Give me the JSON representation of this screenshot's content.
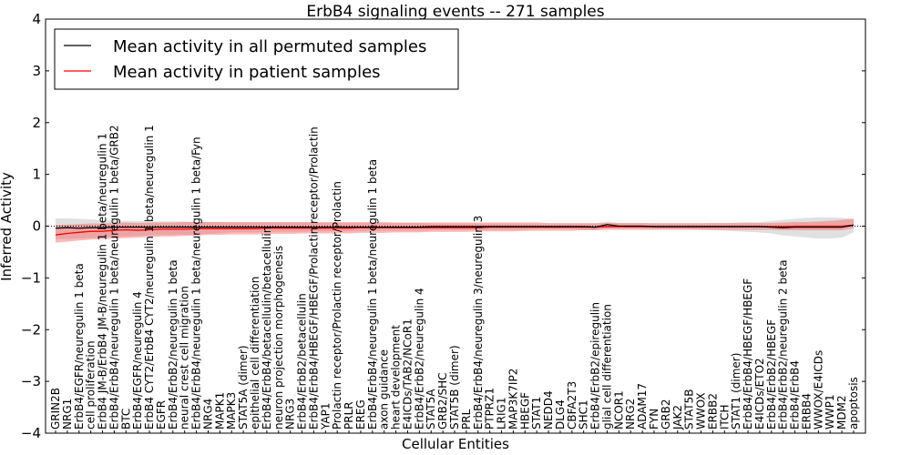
{
  "chart_data": {
    "type": "line",
    "title": "ErbB4 signaling events -- 271 samples",
    "xlabel": "Cellular Entities",
    "ylabel": "Inferred Activity",
    "ylim": [
      -4,
      4
    ],
    "yticks": [
      -4,
      -3,
      -2,
      -1,
      0,
      1,
      2,
      3,
      4
    ],
    "grid": false,
    "legend_position": "top-left",
    "categories": [
      "GRIN2B",
      "NRG1",
      "ErbB4/EGFR/neuregulin 1 beta",
      "cell proliferation",
      "ErbB4 JM-B/ErbB4 JM-B/neuregulin 1 beta/neuregulin 1",
      "ErbB4/ErbB4/neuregulin 1 beta/neuregulin 1 beta/GRB2",
      "BTC",
      "ErbB4/EGFR/neuregulin 4",
      "ErbB4 CYT2/ErbB4 CYT2/neuregulin 1 beta/neuregulin 1",
      "EGFR",
      "ErbB4/ErbB2/neuregulin 1 beta",
      "neural crest cell migration",
      "ErbB4/ErbB4/neuregulin 1 beta/neuregulin 1 beta/Fyn",
      "NRG4",
      "MAPK1",
      "MAPK3",
      "STAT5A (dimer)",
      "epithelial cell differentiation",
      "ErbB4/ErbB4/betacellulin/betacellulin",
      "neuron projection morphogenesis",
      "NRG3",
      "ErbB4/ErbB2/betacellulin",
      "ErbB4/ErbB4/HBEGF/HBEGF/Prolactin receptor/Prolactin",
      "YAP1",
      "Prolactin receptor/Prolactin receptor/Prolactin",
      "PRLR",
      "EREG",
      "ErbB4/ErbB4/neuregulin 1 beta/neuregulin 1 beta",
      "axon guidance",
      "heart development",
      "E4ICDs/TAB2/NCoR1",
      "ErbB4/ErbB2/neuregulin 4",
      "STAT5A",
      "GRB2/SHC",
      "STAT5B (dimer)",
      "PRL",
      "ErbB4/ErbB4/neuregulin 3/neuregulin 3",
      "PTPRZ1",
      "LRIG1",
      "MAP3K7IP2",
      "HBEGF",
      "STAT1",
      "NEDD4",
      "DLG4",
      "CBFA2T3",
      "SHC1",
      "ErbB4/ErbB2/epiregulin",
      "glial cell differentiation",
      "NCOR1",
      "NRG2",
      "ADAM17",
      "FYN",
      "GRB2",
      "JAK2",
      "STAT5B",
      "WWOX",
      "ERBB2",
      "ITCH",
      "STAT1 (dimer)",
      "ErbB4/ErbB4/HBEGF/HBEGF",
      "E4ICDs/ETO2",
      "ErbB4/ErbB2/HBEGF",
      "ErbB4/ErbB2/neuregulin 2 beta",
      "ErbB4/ErbB4",
      "ERBB4",
      "WWOX/E4ICDs",
      "WWP1",
      "MDM2",
      "apoptosis"
    ],
    "series": [
      {
        "name": "Mean activity in all permuted samples",
        "color": "#000000",
        "values": [
          -0.04,
          -0.03,
          -0.04,
          -0.03,
          -0.03,
          -0.02,
          -0.02,
          -0.02,
          -0.02,
          -0.02,
          -0.02,
          -0.02,
          -0.02,
          -0.02,
          -0.02,
          -0.02,
          -0.02,
          -0.02,
          -0.02,
          -0.02,
          -0.02,
          -0.02,
          -0.02,
          -0.02,
          -0.02,
          -0.02,
          -0.02,
          -0.02,
          -0.02,
          -0.02,
          -0.02,
          -0.02,
          -0.01,
          -0.01,
          -0.01,
          -0.01,
          -0.01,
          -0.01,
          -0.01,
          -0.01,
          -0.01,
          -0.01,
          -0.01,
          -0.01,
          -0.01,
          -0.01,
          -0.02,
          0.03,
          0.0,
          0.0,
          0.0,
          -0.01,
          -0.01,
          -0.01,
          -0.01,
          -0.01,
          -0.01,
          -0.01,
          -0.01,
          -0.01,
          -0.01,
          -0.02,
          -0.03,
          -0.02,
          -0.02,
          -0.02,
          -0.02,
          -0.02,
          0.02
        ],
        "band_lower": [
          -0.25,
          -0.25,
          -0.24,
          -0.23,
          -0.22,
          -0.21,
          -0.2,
          -0.19,
          -0.18,
          -0.17,
          -0.17,
          -0.17,
          -0.16,
          -0.15,
          -0.14,
          -0.12,
          -0.12,
          -0.12,
          -0.11,
          -0.11,
          -0.11,
          -0.11,
          -0.1,
          -0.1,
          -0.1,
          -0.1,
          -0.1,
          -0.09,
          -0.09,
          -0.09,
          -0.09,
          -0.09,
          -0.08,
          -0.08,
          -0.08,
          -0.08,
          -0.08,
          -0.07,
          -0.07,
          -0.07,
          -0.07,
          -0.06,
          -0.06,
          -0.06,
          -0.06,
          -0.07,
          -0.08,
          -0.04,
          -0.05,
          -0.05,
          -0.05,
          -0.06,
          -0.06,
          -0.06,
          -0.06,
          -0.07,
          -0.08,
          -0.09,
          -0.1,
          -0.11,
          -0.12,
          -0.14,
          -0.18,
          -0.2,
          -0.22,
          -0.24,
          -0.24,
          -0.22,
          -0.12
        ],
        "band_upper": [
          0.15,
          0.15,
          0.14,
          0.13,
          0.12,
          0.11,
          0.1,
          0.1,
          0.09,
          0.09,
          0.09,
          0.09,
          0.08,
          0.08,
          0.08,
          0.07,
          0.07,
          0.07,
          0.07,
          0.07,
          0.07,
          0.07,
          0.07,
          0.06,
          0.06,
          0.06,
          0.06,
          0.06,
          0.06,
          0.06,
          0.06,
          0.06,
          0.05,
          0.05,
          0.05,
          0.05,
          0.05,
          0.05,
          0.05,
          0.05,
          0.05,
          0.05,
          0.05,
          0.05,
          0.05,
          0.05,
          0.05,
          0.09,
          0.06,
          0.06,
          0.06,
          0.05,
          0.05,
          0.05,
          0.05,
          0.05,
          0.06,
          0.06,
          0.07,
          0.08,
          0.08,
          0.1,
          0.12,
          0.14,
          0.16,
          0.17,
          0.17,
          0.16,
          0.14
        ]
      },
      {
        "name": "Mean activity in patient samples",
        "color": "#ff0000",
        "values": [
          -0.17,
          -0.14,
          -0.12,
          -0.1,
          -0.1,
          -0.08,
          -0.07,
          -0.08,
          -0.07,
          -0.06,
          -0.06,
          -0.06,
          -0.05,
          -0.05,
          -0.05,
          -0.05,
          -0.05,
          -0.05,
          -0.04,
          -0.04,
          -0.04,
          -0.04,
          -0.04,
          -0.04,
          -0.04,
          -0.04,
          -0.03,
          -0.03,
          -0.03,
          -0.03,
          -0.03,
          -0.03,
          -0.03,
          -0.03,
          -0.03,
          -0.03,
          -0.03,
          -0.02,
          -0.02,
          -0.02,
          -0.02,
          -0.02,
          -0.02,
          -0.02,
          -0.02,
          -0.02,
          -0.02,
          -0.01,
          -0.01,
          -0.01,
          -0.01,
          -0.01,
          -0.01,
          -0.01,
          -0.01,
          -0.01,
          -0.01,
          -0.01,
          -0.01,
          -0.01,
          -0.01,
          -0.01,
          -0.01,
          0.0,
          0.0,
          0.0,
          0.0,
          0.0,
          0.02
        ],
        "band_lower": [
          -0.32,
          -0.3,
          -0.28,
          -0.26,
          -0.25,
          -0.24,
          -0.23,
          -0.22,
          -0.21,
          -0.2,
          -0.2,
          -0.19,
          -0.18,
          -0.17,
          -0.17,
          -0.16,
          -0.16,
          -0.16,
          -0.15,
          -0.15,
          -0.15,
          -0.14,
          -0.14,
          -0.14,
          -0.14,
          -0.14,
          -0.13,
          -0.13,
          -0.13,
          -0.12,
          -0.12,
          -0.12,
          -0.11,
          -0.11,
          -0.11,
          -0.11,
          -0.1,
          -0.1,
          -0.1,
          -0.1,
          -0.09,
          -0.09,
          -0.09,
          -0.09,
          -0.09,
          -0.08,
          -0.08,
          -0.07,
          -0.07,
          -0.07,
          -0.07,
          -0.07,
          -0.07,
          -0.07,
          -0.07,
          -0.07,
          -0.07,
          -0.07,
          -0.07,
          -0.07,
          -0.07,
          -0.07,
          -0.08,
          -0.08,
          -0.08,
          -0.08,
          -0.08,
          -0.08,
          -0.04
        ],
        "band_upper": [
          0.02,
          0.03,
          0.04,
          0.05,
          0.05,
          0.06,
          0.07,
          0.06,
          0.07,
          0.07,
          0.07,
          0.08,
          0.08,
          0.08,
          0.08,
          0.08,
          0.08,
          0.08,
          0.08,
          0.08,
          0.08,
          0.08,
          0.08,
          0.08,
          0.08,
          0.08,
          0.08,
          0.08,
          0.08,
          0.07,
          0.07,
          0.07,
          0.07,
          0.07,
          0.07,
          0.07,
          0.07,
          0.07,
          0.07,
          0.07,
          0.07,
          0.07,
          0.06,
          0.06,
          0.06,
          0.06,
          0.06,
          0.06,
          0.06,
          0.06,
          0.06,
          0.06,
          0.06,
          0.06,
          0.06,
          0.06,
          0.06,
          0.06,
          0.06,
          0.06,
          0.06,
          0.06,
          0.07,
          0.08,
          0.08,
          0.09,
          0.1,
          0.12,
          0.14
        ]
      }
    ]
  }
}
